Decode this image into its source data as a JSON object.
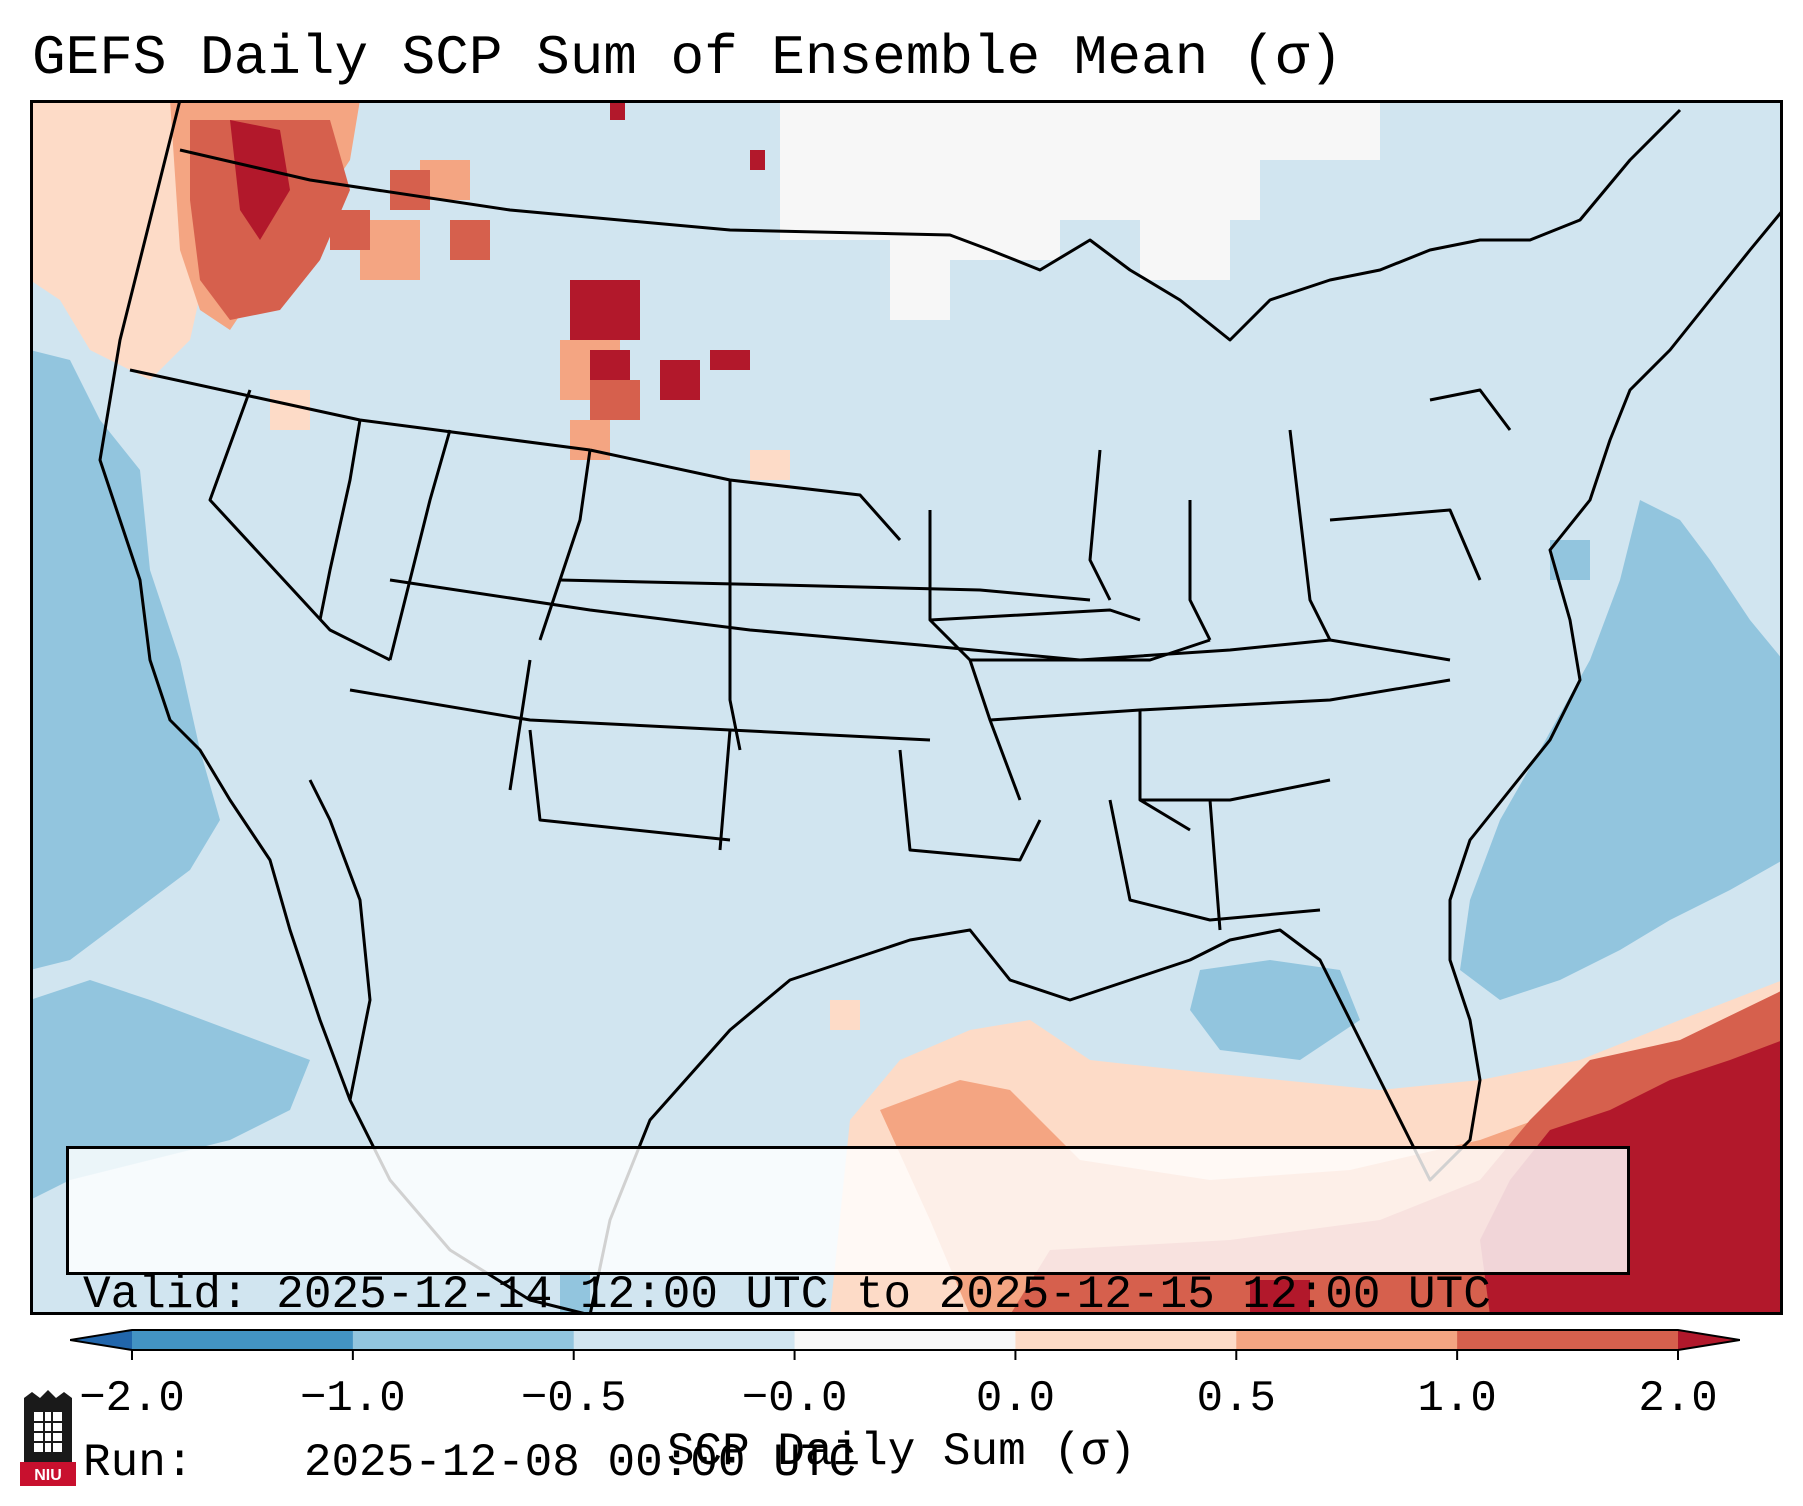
{
  "title": "GEFS Daily SCP Sum of Ensemble Mean (σ)",
  "info": {
    "valid_label": "Valid:",
    "valid_value": "2025-12-14 12:00 UTC to 2025-12-15 12:00 UTC",
    "run_label": "Run:",
    "run_value": "2025-12-08 00:00 UTC"
  },
  "colorbar": {
    "label": "SCP Daily Sum (σ)",
    "ticks": [
      "−2.0",
      "−1.0",
      "−0.5",
      "−0.0",
      "0.0",
      "0.5",
      "1.0",
      "2.0"
    ],
    "bins": [
      {
        "from": "-inf",
        "to": -2.0,
        "color": "#2166ac"
      },
      {
        "from": -2.0,
        "to": -1.0,
        "color": "#4393c3"
      },
      {
        "from": -1.0,
        "to": -0.5,
        "color": "#92c5de"
      },
      {
        "from": -0.5,
        "to": -0.0,
        "color": "#d1e5f0"
      },
      {
        "from": -0.0,
        "to": 0.0,
        "color": "#f7f7f7"
      },
      {
        "from": 0.0,
        "to": 0.5,
        "color": "#fddbc7"
      },
      {
        "from": 0.5,
        "to": 1.0,
        "color": "#f4a582"
      },
      {
        "from": 1.0,
        "to": 2.0,
        "color": "#d6604d"
      },
      {
        "from": 2.0,
        "to": "inf",
        "color": "#b2182b"
      }
    ]
  },
  "colors": {
    "background_field": "#d1e5f0",
    "border": "#000000"
  },
  "logo": {
    "text": "NIU",
    "icon": "niu-tower-icon"
  }
}
